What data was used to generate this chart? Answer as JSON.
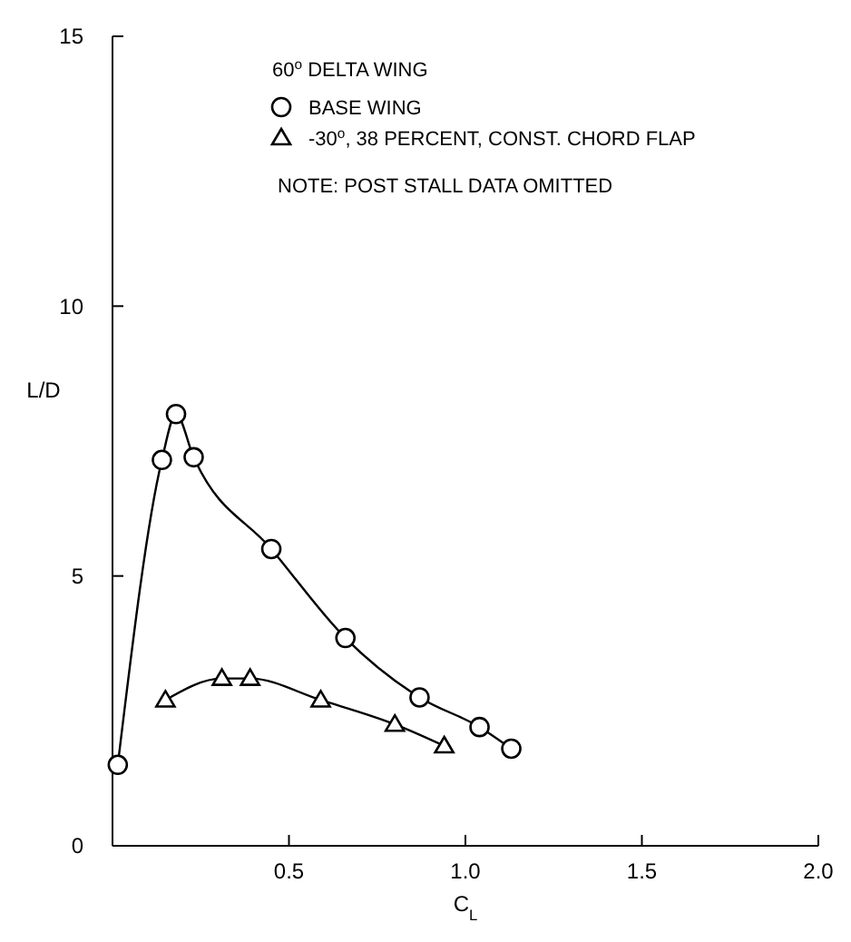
{
  "chart_data": {
    "type": "line",
    "xlabel": "C$_{L}$",
    "ylabel": "L/D",
    "legend_title": "60$^{o}$ DELTA WING",
    "legend": "top",
    "grid": false,
    "line_style": "solid",
    "xlim": [
      0,
      2.0
    ],
    "xticks": [
      {
        "value": 0,
        "label": null
      },
      0.5,
      {
        "value": 1,
        "label": "1.0"
      },
      1.5,
      {
        "value": 2,
        "label": "2.0"
      }
    ],
    "ylim": [
      0,
      15
    ],
    "yticks": [
      0,
      5,
      10,
      15
    ],
    "annotations": [
      "NOTE: POST STALL DATA OMITTED"
    ],
    "series": [
      {
        "name": "BASE WING",
        "color": "#000000",
        "marker": "circle",
        "x": [
          0.015,
          0.14,
          0.18,
          0.23,
          0.45,
          0.66,
          0.87,
          1.04,
          1.13
        ],
        "values": [
          1.5,
          7.15,
          8.0,
          7.2,
          5.5,
          3.85,
          2.75,
          2.2,
          1.8
        ]
      },
      {
        "name": "-30$^{o}$, 38 PERCENT, CONST. CHORD FLAP",
        "color": "#000000",
        "marker": "triangle",
        "x": [
          0.15,
          0.31,
          0.39,
          0.59,
          0.8,
          0.94
        ],
        "values": [
          2.7,
          3.1,
          3.1,
          2.7,
          2.25,
          1.85
        ]
      }
    ]
  }
}
